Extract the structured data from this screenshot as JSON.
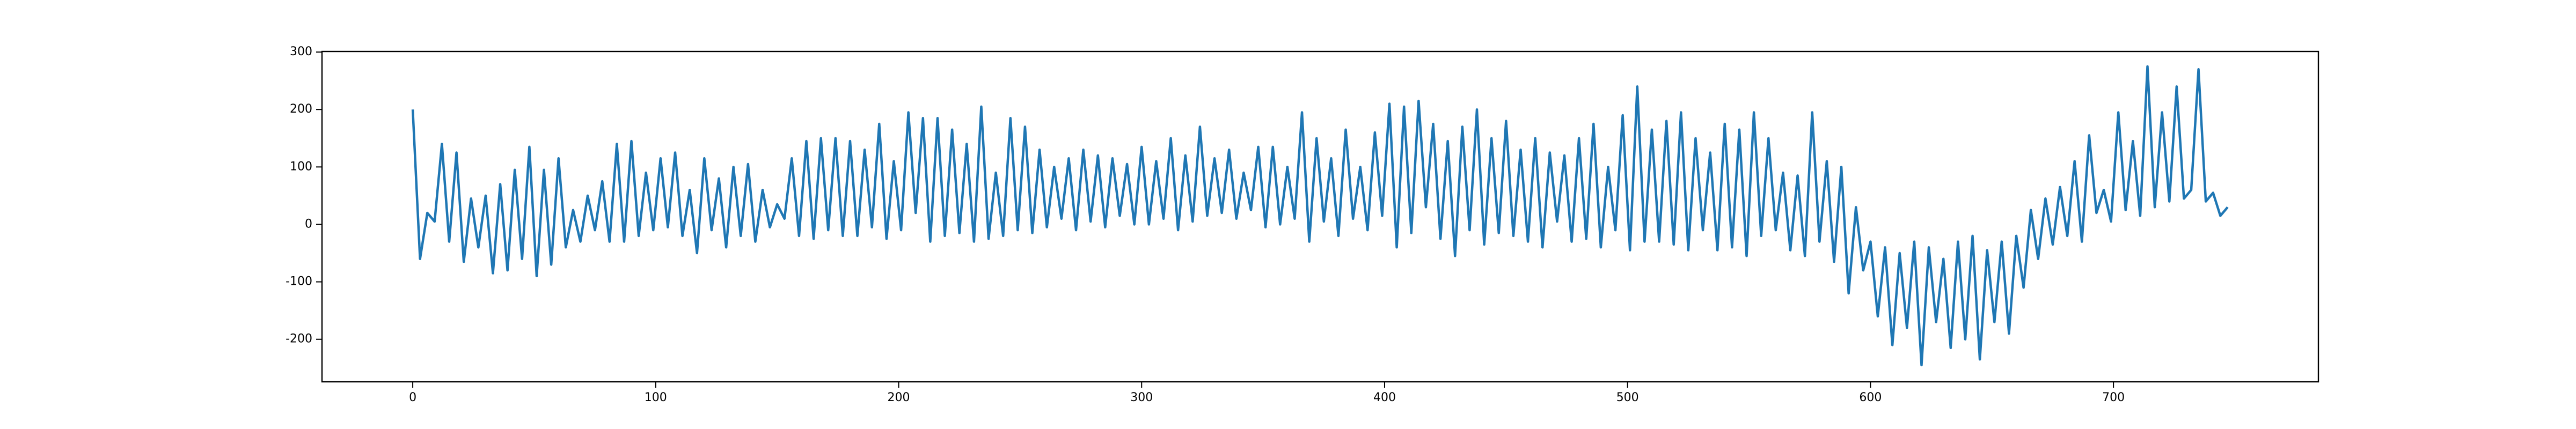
{
  "chart_data": {
    "type": "line",
    "x": [
      0,
      3,
      6,
      9,
      12,
      15,
      18,
      21,
      24,
      27,
      30,
      33,
      36,
      39,
      42,
      45,
      48,
      51,
      54,
      57,
      60,
      63,
      66,
      69,
      72,
      75,
      78,
      81,
      84,
      87,
      90,
      93,
      96,
      99,
      102,
      105,
      108,
      111,
      114,
      117,
      120,
      123,
      126,
      129,
      132,
      135,
      138,
      141,
      144,
      147,
      150,
      153,
      156,
      159,
      162,
      165,
      168,
      171,
      174,
      177,
      180,
      183,
      186,
      189,
      192,
      195,
      198,
      201,
      204,
      207,
      210,
      213,
      216,
      219,
      222,
      225,
      228,
      231,
      234,
      237,
      240,
      243,
      246,
      249,
      252,
      255,
      258,
      261,
      264,
      267,
      270,
      273,
      276,
      279,
      282,
      285,
      288,
      291,
      294,
      297,
      300,
      303,
      306,
      309,
      312,
      315,
      318,
      321,
      324,
      327,
      330,
      333,
      336,
      339,
      342,
      345,
      348,
      351,
      354,
      357,
      360,
      363,
      366,
      369,
      372,
      375,
      378,
      381,
      384,
      387,
      390,
      393,
      396,
      399,
      402,
      405,
      408,
      411,
      414,
      417,
      420,
      423,
      426,
      429,
      432,
      435,
      438,
      441,
      444,
      447,
      450,
      453,
      456,
      459,
      462,
      465,
      468,
      471,
      474,
      477,
      480,
      483,
      486,
      489,
      492,
      495,
      498,
      501,
      504,
      507,
      510,
      513,
      516,
      519,
      522,
      525,
      528,
      531,
      534,
      537,
      540,
      543,
      546,
      549,
      552,
      555,
      558,
      561,
      564,
      567,
      570,
      573,
      576,
      579,
      582,
      585,
      588,
      591,
      594,
      597,
      600,
      603,
      606,
      609,
      612,
      615,
      618,
      621,
      624,
      627,
      630,
      633,
      636,
      639,
      642,
      645,
      648,
      651,
      654,
      657,
      660,
      663,
      666,
      669,
      672,
      675,
      678,
      681,
      684,
      687,
      690,
      693,
      696,
      699,
      702,
      705,
      708,
      711,
      714,
      717,
      720,
      723,
      726,
      729,
      732,
      735,
      738,
      741,
      744,
      747
    ],
    "series": [
      {
        "color": "#1f77b4",
        "values": [
          200,
          -60,
          20,
          5,
          140,
          -30,
          125,
          -65,
          45,
          -40,
          50,
          -85,
          70,
          -80,
          95,
          -60,
          135,
          -90,
          95,
          -70,
          115,
          -40,
          25,
          -30,
          50,
          -10,
          75,
          -30,
          140,
          -30,
          145,
          -20,
          90,
          -10,
          115,
          -5,
          125,
          -20,
          60,
          -50,
          115,
          -10,
          80,
          -40,
          100,
          -20,
          105,
          -30,
          60,
          -5,
          35,
          10,
          115,
          -20,
          145,
          -25,
          150,
          -10,
          150,
          -20,
          145,
          -20,
          130,
          -5,
          175,
          -25,
          110,
          -10,
          195,
          20,
          185,
          -30,
          185,
          -20,
          165,
          -15,
          140,
          -30,
          205,
          -25,
          90,
          -20,
          185,
          -10,
          170,
          -15,
          130,
          -5,
          100,
          10,
          115,
          -10,
          130,
          5,
          120,
          -5,
          115,
          15,
          105,
          0,
          135,
          0,
          110,
          10,
          150,
          -10,
          120,
          5,
          170,
          15,
          115,
          20,
          130,
          10,
          90,
          25,
          135,
          -5,
          135,
          0,
          100,
          10,
          195,
          -30,
          150,
          5,
          115,
          -20,
          165,
          10,
          100,
          -10,
          160,
          15,
          210,
          -40,
          205,
          -15,
          215,
          30,
          175,
          -25,
          145,
          -55,
          170,
          -10,
          200,
          -35,
          150,
          -15,
          180,
          -20,
          130,
          -30,
          150,
          -40,
          125,
          5,
          120,
          -30,
          150,
          -25,
          175,
          -40,
          100,
          -10,
          190,
          -45,
          240,
          -30,
          165,
          -30,
          180,
          -35,
          195,
          -45,
          150,
          -10,
          125,
          -45,
          175,
          -40,
          165,
          -55,
          195,
          -20,
          150,
          -10,
          90,
          -45,
          85,
          -55,
          195,
          -30,
          110,
          -65,
          100,
          -120,
          30,
          -80,
          -30,
          -160,
          -40,
          -210,
          -50,
          -180,
          -30,
          -245,
          -40,
          -170,
          -60,
          -215,
          -30,
          -200,
          -20,
          -235,
          -45,
          -170,
          -30,
          -190,
          -20,
          -110,
          25,
          -60,
          45,
          -35,
          65,
          -20,
          110,
          -30,
          155,
          20,
          60,
          5,
          195,
          25,
          145,
          15,
          275,
          30,
          195,
          40,
          240,
          45,
          60,
          270,
          40,
          55,
          15,
          30
        ]
      }
    ],
    "xlim": [
      -37.35,
      784.35
    ],
    "xticks": [
      0,
      100,
      200,
      300,
      400,
      500,
      600,
      700
    ],
    "ylim": [
      -274,
      301
    ],
    "yticks": [
      -200,
      -100,
      0,
      100,
      200,
      300
    ]
  }
}
